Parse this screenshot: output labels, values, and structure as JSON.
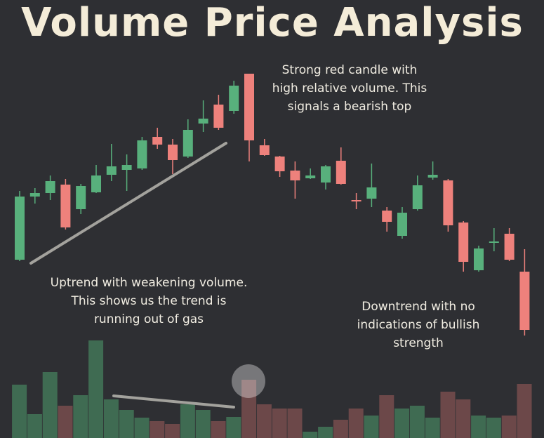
{
  "chart_data": {
    "type": "candlestick",
    "title": "Volume Price Analysis",
    "annotations": [
      [
        "Strong red candle with",
        "high relative volume. This",
        "signals a bearish top"
      ],
      [
        "Uptrend with weakening volume.",
        "This shows us the trend is",
        "running out of gas"
      ],
      [
        "Downtrend with no",
        "indications of bullish",
        "strength"
      ]
    ],
    "open": [
      254,
      344,
      349,
      361,
      326,
      350,
      375,
      382,
      384,
      429,
      418,
      401,
      448,
      475,
      466,
      519,
      417,
      401,
      381,
      370,
      364,
      395,
      339,
      341,
      324,
      288,
      326,
      371,
      367,
      307,
      239,
      278,
      291,
      237
    ],
    "high": [
      352,
      356,
      374,
      369,
      362,
      389,
      419,
      404,
      429,
      442,
      426,
      454,
      481,
      489,
      509,
      519,
      426,
      402,
      394,
      384,
      389,
      414,
      349,
      391,
      329,
      329,
      374,
      394,
      369,
      309,
      274,
      299,
      299,
      269
    ],
    "low": [
      252,
      334,
      339,
      297,
      319,
      349,
      366,
      352,
      382,
      412,
      376,
      399,
      436,
      439,
      462,
      394,
      402,
      372,
      341,
      369,
      354,
      361,
      326,
      329,
      294,
      284,
      324,
      368,
      294,
      237,
      237,
      266,
      252,
      146
    ],
    "close": [
      344,
      349,
      366,
      300,
      359,
      374,
      387,
      389,
      424,
      418,
      396,
      439,
      455,
      442,
      502,
      424,
      403,
      380,
      367,
      374,
      387,
      362,
      337,
      357,
      308,
      321,
      360,
      375,
      303,
      251,
      270,
      280,
      254,
      154
    ],
    "volume": [
      76,
      34,
      94,
      46,
      61,
      139,
      55,
      40,
      29,
      24,
      20,
      48,
      40,
      24,
      30,
      83,
      48,
      42,
      42,
      9,
      16,
      26,
      42,
      32,
      61,
      42,
      46,
      29,
      66,
      55,
      32,
      29,
      32,
      77
    ],
    "ylim": [
      100,
      530
    ],
    "volume_lim": [
      0,
      140
    ],
    "up_color": "#58b07c",
    "down_color": "#ee817c",
    "volume_up_color": "#3f6b52",
    "volume_down_color": "#6c4849"
  }
}
